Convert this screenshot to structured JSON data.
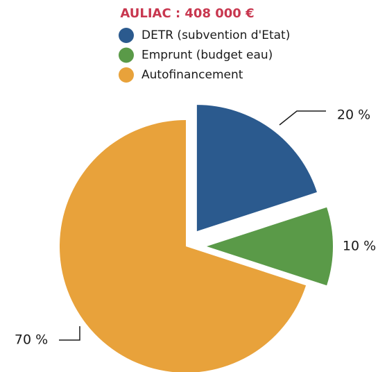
{
  "chart_data": {
    "type": "pie",
    "title": "AULIAC : 408 000 €",
    "categories": [
      "DETR (subvention d'Etat)",
      "Emprunt (budget eau)",
      "Autofinancement"
    ],
    "values": [
      20,
      10,
      70
    ],
    "value_labels": [
      "20 %",
      "10 %",
      "70 %"
    ],
    "colors": [
      "#2b5a8e",
      "#5a9a48",
      "#e8a23b"
    ]
  }
}
